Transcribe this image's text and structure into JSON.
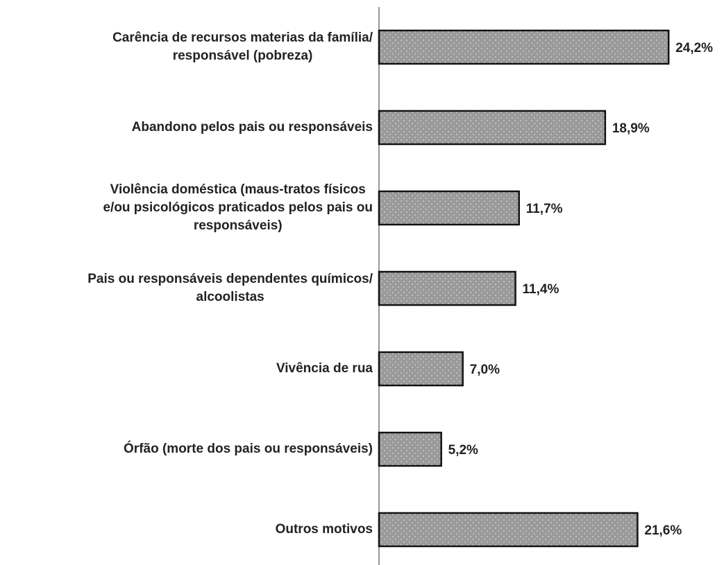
{
  "chart_data": {
    "type": "barh",
    "categories": [
      "Carência de recursos materias da família/\nresponsável (pobreza)",
      "Abandono pelos pais ou responsáveis",
      "Violência doméstica (maus-tratos físicos\ne/ou psicológicos praticados pelos pais ou\nresponsáveis)",
      "Pais ou responsáveis dependentes químicos/\nalcoolistas",
      "Vivência de rua",
      "Órfão (morte dos pais ou responsáveis)",
      "Outros motivos"
    ],
    "values": [
      24.2,
      18.9,
      11.7,
      11.4,
      7.0,
      5.2,
      21.6
    ],
    "value_labels": [
      "24,2%",
      "18,9%",
      "11,7%",
      "11,4%",
      "7,0%",
      "5,2%",
      "21,6%"
    ],
    "color": "#9a9a9a",
    "xlim": [
      0,
      25
    ]
  }
}
